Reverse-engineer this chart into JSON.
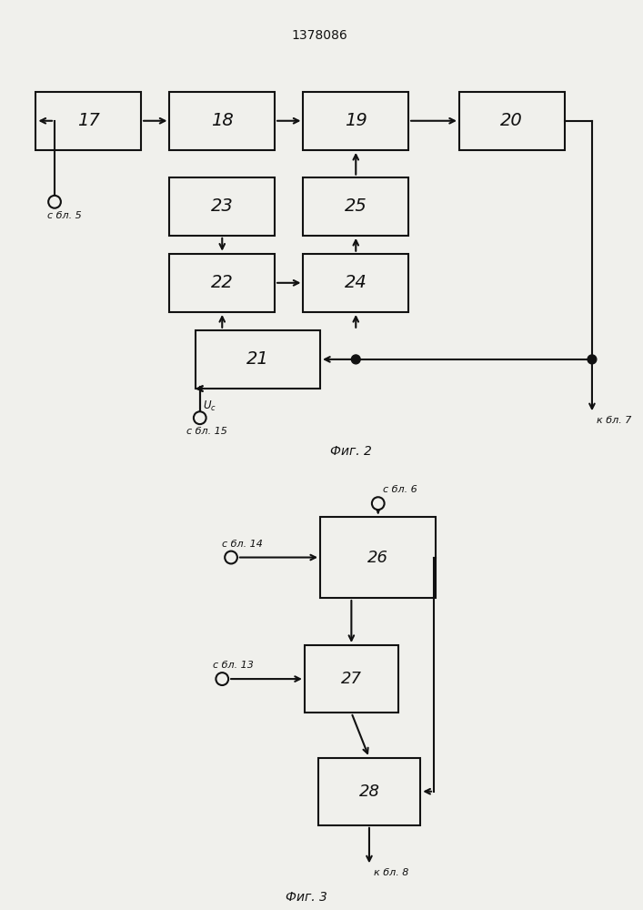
{
  "title": "1378086",
  "fig2_label": "Фиг. 2",
  "fig3_label": "Фиг. 3",
  "background_color": "#f0f0ec",
  "box_color": "#f0f0ec",
  "line_color": "#111111"
}
